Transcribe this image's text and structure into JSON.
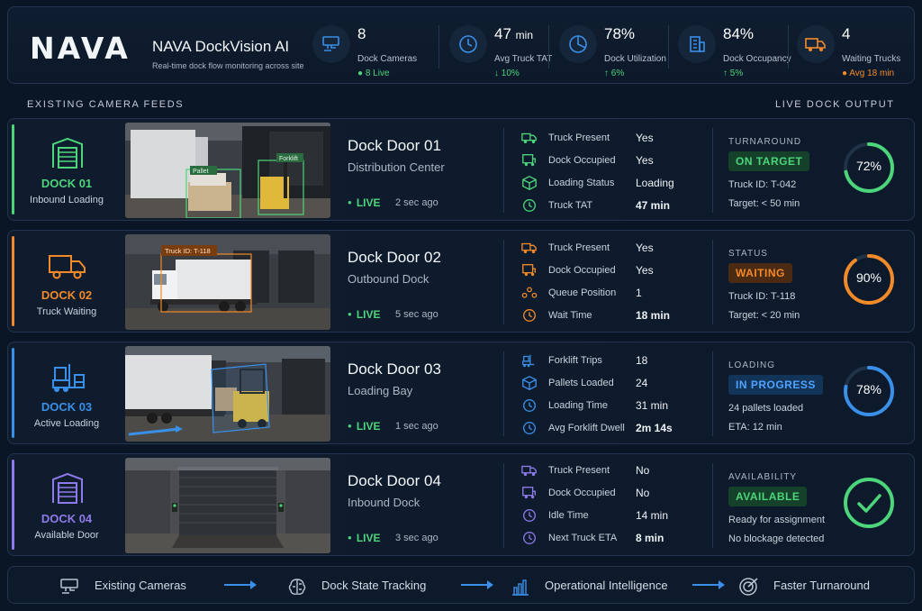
{
  "header": {
    "logo": "NAVA",
    "title": "NAVA DockVision AI",
    "subtitle": "Real-time dock flow monitoring across site",
    "stats": [
      {
        "icon": "camera-icon",
        "value": "8",
        "unit": "",
        "label": "Dock Cameras",
        "sub": "● 8 Live",
        "color": "#4cd57a"
      },
      {
        "icon": "clock-icon",
        "value": "47",
        "unit": "min",
        "label": "Avg Truck TAT",
        "sub": "↓ 10%",
        "color": "#4cd57a"
      },
      {
        "icon": "pie-chart-icon",
        "value": "78%",
        "unit": "",
        "label": "Dock Utilization",
        "sub": "↑ 6%",
        "color": "#4cd57a"
      },
      {
        "icon": "building-icon",
        "value": "84%",
        "unit": "",
        "label": "Dock Occupancy",
        "sub": "↑ 5%",
        "color": "#4cd57a"
      },
      {
        "icon": "truck-icon",
        "value": "4",
        "unit": "",
        "label": "Waiting Trucks",
        "sub": "● Avg 18 min",
        "color": "#f28a2a"
      }
    ]
  },
  "sections": {
    "feeds_label": "EXISTING CAMERA FEEDS",
    "output_label": "LIVE DOCK OUTPUT"
  },
  "docks": [
    {
      "name": "DOCK 01",
      "state": "Inbound Loading",
      "color": "#4cd57a",
      "door": "Dock Door 01",
      "location": "Distribution Center",
      "live": "LIVE",
      "ago": "2 sec ago",
      "feed_labels": [
        "Pallet",
        "Forklift"
      ],
      "metrics": [
        {
          "icon": "truck-icon",
          "label": "Truck Present",
          "value": "Yes"
        },
        {
          "icon": "dock-icon",
          "label": "Dock Occupied",
          "value": "Yes"
        },
        {
          "icon": "box-icon",
          "label": "Loading Status",
          "value": "Loading"
        },
        {
          "icon": "clock-icon",
          "label": "Truck TAT",
          "value": "47 min",
          "highlight": true
        }
      ],
      "status_caption": "TURNAROUND",
      "badge": "ON TARGET",
      "info1": "Truck ID: T-042",
      "info2": "Target: < 50 min",
      "percent": 0.72,
      "percent_label": "72%"
    },
    {
      "name": "DOCK 02",
      "state": "Truck Waiting",
      "color": "#f28a2a",
      "door": "Dock Door 02",
      "location": "Outbound Dock",
      "live": "LIVE",
      "ago": "5 sec ago",
      "feed_labels": [
        "Truck ID: T-118"
      ],
      "metrics": [
        {
          "icon": "truck-icon",
          "label": "Truck Present",
          "value": "Yes"
        },
        {
          "icon": "dock-icon",
          "label": "Dock Occupied",
          "value": "Yes"
        },
        {
          "icon": "queue-icon",
          "label": "Queue Position",
          "value": "1"
        },
        {
          "icon": "clock-icon",
          "label": "Wait Time",
          "value": "18 min",
          "highlight": true
        }
      ],
      "status_caption": "STATUS",
      "badge": "WAITING",
      "info1": "Truck ID: T-118",
      "info2": "Target: < 20 min",
      "percent": 0.9,
      "percent_label": "90%"
    },
    {
      "name": "DOCK 03",
      "state": "Active Loading",
      "color": "#3a8fe8",
      "door": "Dock Door 03",
      "location": "Loading Bay",
      "live": "LIVE",
      "ago": "1 sec ago",
      "feed_labels": [],
      "metrics": [
        {
          "icon": "forklift-icon",
          "label": "Forklift Trips",
          "value": "18"
        },
        {
          "icon": "boxes-icon",
          "label": "Pallets Loaded",
          "value": "24"
        },
        {
          "icon": "clock-icon",
          "label": "Loading Time",
          "value": "31 min"
        },
        {
          "icon": "clock-icon",
          "label": "Avg Forklift Dwell",
          "value": "2m 14s",
          "highlight": true
        }
      ],
      "status_caption": "LOADING",
      "badge": "IN PROGRESS",
      "info1": "24 pallets loaded",
      "info2": "ETA: 12 min",
      "percent": 0.78,
      "percent_label": "78%"
    },
    {
      "name": "DOCK 04",
      "state": "Available Door",
      "color": "#8e7ae8",
      "door": "Dock Door 04",
      "location": "Inbound Dock",
      "live": "LIVE",
      "ago": "3 sec ago",
      "feed_labels": [],
      "metrics": [
        {
          "icon": "truck-icon",
          "label": "Truck Present",
          "value": "No"
        },
        {
          "icon": "dock-icon",
          "label": "Dock Occupied",
          "value": "No"
        },
        {
          "icon": "clock-icon",
          "label": "Idle Time",
          "value": "14 min"
        },
        {
          "icon": "clock-icon",
          "label": "Next Truck ETA",
          "value": "8 min",
          "highlight": true
        }
      ],
      "status_caption": "AVAILABILITY",
      "badge": "AVAILABLE",
      "info1": "Ready for assignment",
      "info2": "No blockage detected",
      "percent": 1.0,
      "percent_label": ""
    }
  ],
  "footer": [
    {
      "icon": "camera-icon",
      "label": "Existing Cameras"
    },
    {
      "icon": "brain-icon",
      "label": "Dock State Tracking"
    },
    {
      "icon": "bar-chart-icon",
      "label": "Operational Intelligence"
    },
    {
      "icon": "target-icon",
      "label": "Faster Turnaround"
    }
  ]
}
